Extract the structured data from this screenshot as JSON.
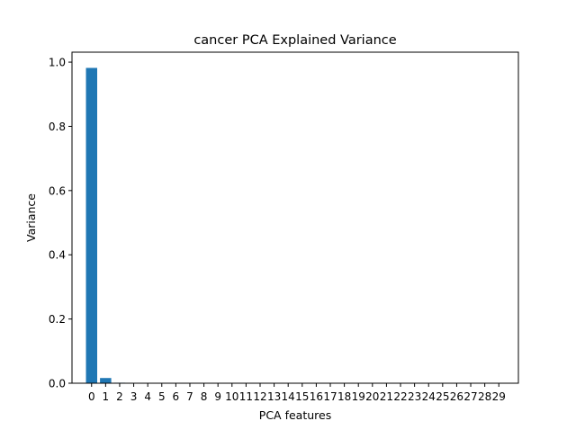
{
  "chart_data": {
    "type": "bar",
    "title": "cancer PCA Explained Variance",
    "xlabel": "PCA features",
    "ylabel": "Variance",
    "categories": [
      "0",
      "1",
      "2",
      "3",
      "4",
      "5",
      "6",
      "7",
      "8",
      "9",
      "10",
      "11",
      "12",
      "13",
      "14",
      "15",
      "16",
      "17",
      "18",
      "19",
      "20",
      "21",
      "22",
      "23",
      "24",
      "25",
      "26",
      "27",
      "28",
      "29"
    ],
    "values": [
      0.982,
      0.0162,
      0.0016,
      0.0001,
      0.0001,
      0.0,
      0.0,
      0.0,
      0.0,
      0.0,
      0.0,
      0.0,
      0.0,
      0.0,
      0.0,
      0.0,
      0.0,
      0.0,
      0.0,
      0.0,
      0.0,
      0.0,
      0.0,
      0.0,
      0.0,
      0.0,
      0.0,
      0.0,
      0.0,
      0.0
    ],
    "ylim": [
      0,
      1.031
    ],
    "yticks": [
      0.0,
      0.2,
      0.4,
      0.6,
      0.8,
      1.0
    ],
    "ytick_labels": [
      "0.0",
      "0.2",
      "0.4",
      "0.6",
      "0.8",
      "1.0"
    ],
    "bar_color": "#1f77b4",
    "grid": false,
    "legend": false
  }
}
